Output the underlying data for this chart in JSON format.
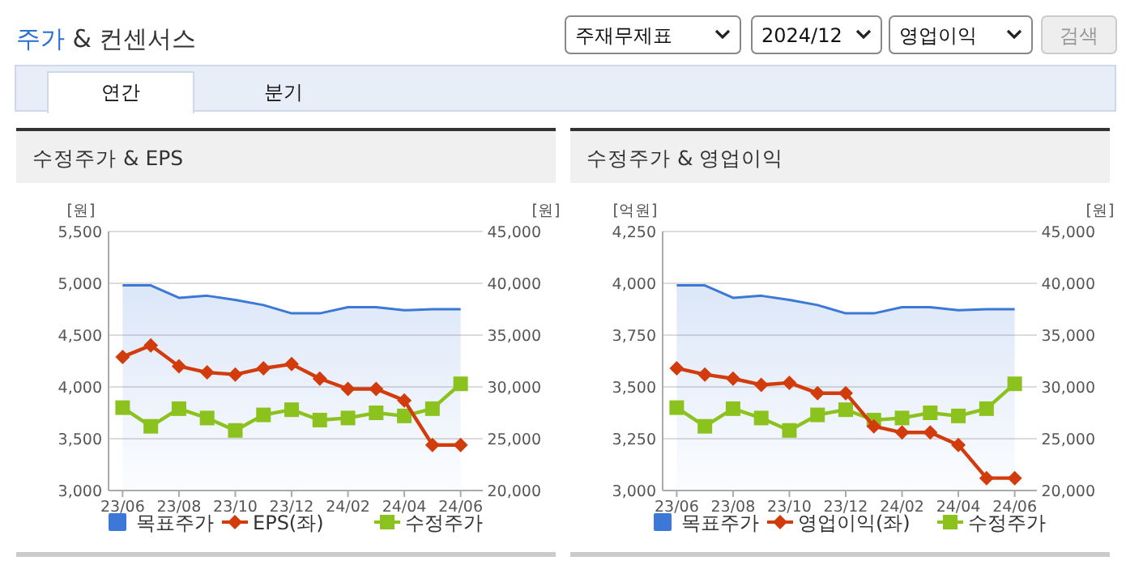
{
  "chart_data": [
    {
      "type": "other",
      "title": "주가 & 컨센서스",
      "annotations": [
        "주재무제표",
        "2024/12",
        "영업이익",
        "검색",
        "연간",
        "분기"
      ]
    },
    {
      "type": "line",
      "title": "수정주가 & EPS",
      "ylabel": "[원]",
      "y2label": "[원]",
      "categories": [
        "23/06",
        null,
        "23/08",
        null,
        "23/10",
        null,
        "23/12",
        null,
        "24/02",
        null,
        "24/04",
        null,
        "24/06"
      ],
      "ylim": [
        3000,
        5500
      ],
      "yticks": [
        {
          "value": 3000,
          "label": "3,000"
        },
        {
          "value": 3500,
          "label": "3,500"
        },
        {
          "value": 4000,
          "label": "4,000"
        },
        {
          "value": 4500,
          "label": "4,500"
        },
        {
          "value": 5000,
          "label": "5,000"
        },
        {
          "value": 5500,
          "label": "5,500"
        }
      ],
      "y2lim": [
        20000,
        45000
      ],
      "y2ticks": [
        {
          "value": 20000,
          "label": "20,000"
        },
        {
          "value": 25000,
          "label": "25,000"
        },
        {
          "value": 30000,
          "label": "30,000"
        },
        {
          "value": 35000,
          "label": "35,000"
        },
        {
          "value": 40000,
          "label": "40,000"
        },
        {
          "value": 45000,
          "label": "45,000"
        }
      ],
      "grid": "y",
      "legend": "bottom",
      "series": [
        {
          "name": "목표주가",
          "type": "area",
          "axis": "y2",
          "color": "#3b78d8",
          "values": [
            39800,
            39800,
            38600,
            38800,
            38400,
            37900,
            37100,
            37100,
            37700,
            37700,
            37400,
            37500,
            37500
          ]
        },
        {
          "name": "EPS(좌)",
          "type": "line",
          "marker": "diamond",
          "color": "#d23c0c",
          "values": [
            4290,
            4400,
            4200,
            4140,
            4120,
            4180,
            4220,
            4080,
            3980,
            3980,
            3870,
            3440,
            3440
          ]
        },
        {
          "name": "수정주가",
          "type": "line",
          "axis": "y2",
          "marker": "square",
          "color": "#8cc21e",
          "values": [
            28000,
            26200,
            27900,
            27000,
            25800,
            27300,
            27800,
            26800,
            27000,
            27500,
            27200,
            27900,
            30300
          ]
        }
      ]
    },
    {
      "type": "line",
      "title": "수정주가 & 영업이익",
      "ylabel": "[억원]",
      "y2label": "[원]",
      "categories": [
        "23/06",
        null,
        "23/08",
        null,
        "23/10",
        null,
        "23/12",
        null,
        "24/02",
        null,
        "24/04",
        null,
        "24/06"
      ],
      "ylim": [
        3000,
        4250
      ],
      "yticks": [
        {
          "value": 3000,
          "label": "3,000"
        },
        {
          "value": 3250,
          "label": "3,250"
        },
        {
          "value": 3500,
          "label": "3,500"
        },
        {
          "value": 3750,
          "label": "3,750"
        },
        {
          "value": 4000,
          "label": "4,000"
        },
        {
          "value": 4250,
          "label": "4,250"
        }
      ],
      "y2lim": [
        20000,
        45000
      ],
      "y2ticks": [
        {
          "value": 20000,
          "label": "20,000"
        },
        {
          "value": 25000,
          "label": "25,000"
        },
        {
          "value": 30000,
          "label": "30,000"
        },
        {
          "value": 35000,
          "label": "35,000"
        },
        {
          "value": 40000,
          "label": "40,000"
        },
        {
          "value": 45000,
          "label": "45,000"
        }
      ],
      "grid": "y",
      "legend": "bottom",
      "series": [
        {
          "name": "목표주가",
          "type": "area",
          "axis": "y2",
          "color": "#3b78d8",
          "values": [
            39800,
            39800,
            38600,
            38800,
            38400,
            37900,
            37100,
            37100,
            37700,
            37700,
            37400,
            37500,
            37500
          ]
        },
        {
          "name": "영업이익(좌)",
          "type": "line",
          "marker": "diamond",
          "color": "#d23c0c",
          "values": [
            3590,
            3560,
            3540,
            3510,
            3520,
            3470,
            3470,
            3310,
            3280,
            3280,
            3220,
            3060,
            3060
          ]
        },
        {
          "name": "수정주가",
          "type": "line",
          "axis": "y2",
          "marker": "square",
          "color": "#8cc21e",
          "values": [
            28000,
            26200,
            27900,
            27000,
            25800,
            27300,
            27800,
            26800,
            27000,
            27500,
            27200,
            27900,
            30300
          ]
        }
      ]
    }
  ]
}
